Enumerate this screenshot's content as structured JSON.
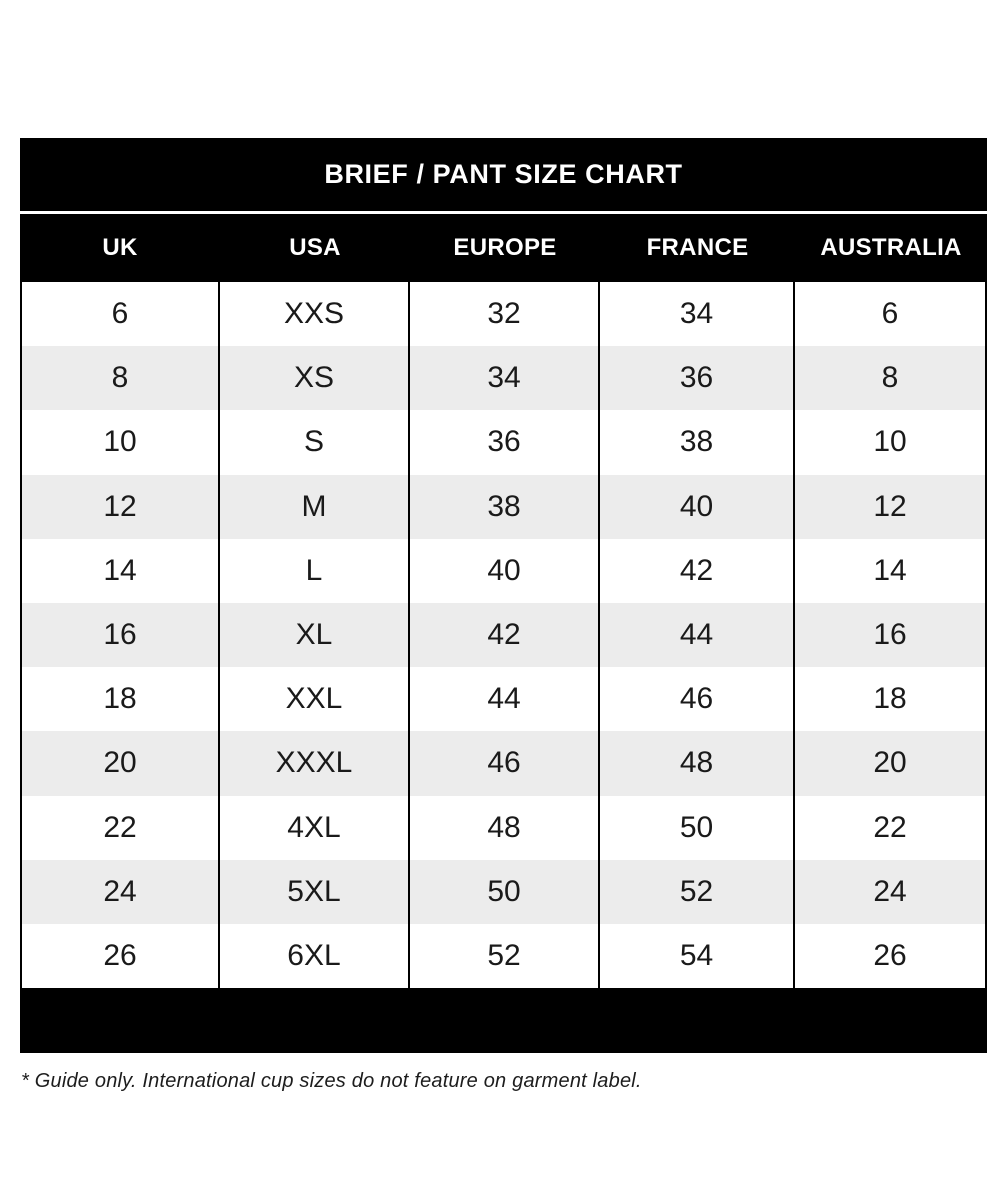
{
  "chart_data": {
    "type": "table",
    "title": "BRIEF / PANT SIZE CHART",
    "columns": [
      "UK",
      "USA",
      "EUROPE",
      "FRANCE",
      "AUSTRALIA"
    ],
    "rows": [
      [
        "6",
        "XXS",
        "32",
        "34",
        "6"
      ],
      [
        "8",
        "XS",
        "34",
        "36",
        "8"
      ],
      [
        "10",
        "S",
        "36",
        "38",
        "10"
      ],
      [
        "12",
        "M",
        "38",
        "40",
        "12"
      ],
      [
        "14",
        "L",
        "40",
        "42",
        "14"
      ],
      [
        "16",
        "XL",
        "42",
        "44",
        "16"
      ],
      [
        "18",
        "XXL",
        "44",
        "46",
        "18"
      ],
      [
        "20",
        "XXXL",
        "46",
        "48",
        "20"
      ],
      [
        "22",
        "4XL",
        "48",
        "50",
        "22"
      ],
      [
        "24",
        "5XL",
        "50",
        "52",
        "24"
      ],
      [
        "26",
        "6XL",
        "52",
        "54",
        "26"
      ]
    ],
    "footnote": "* Guide only. International cup sizes do not feature on garment label.",
    "layout": {
      "legend": "none",
      "grid": "vertical-dividers-only",
      "row_alt_shading": true
    },
    "colors": {
      "header_bg": "#000000",
      "header_text": "#ffffff",
      "row_bg": "#ffffff",
      "alt_row_bg": "#ececec",
      "cell_text": "#1a1a1a",
      "divider": "#000000"
    }
  }
}
